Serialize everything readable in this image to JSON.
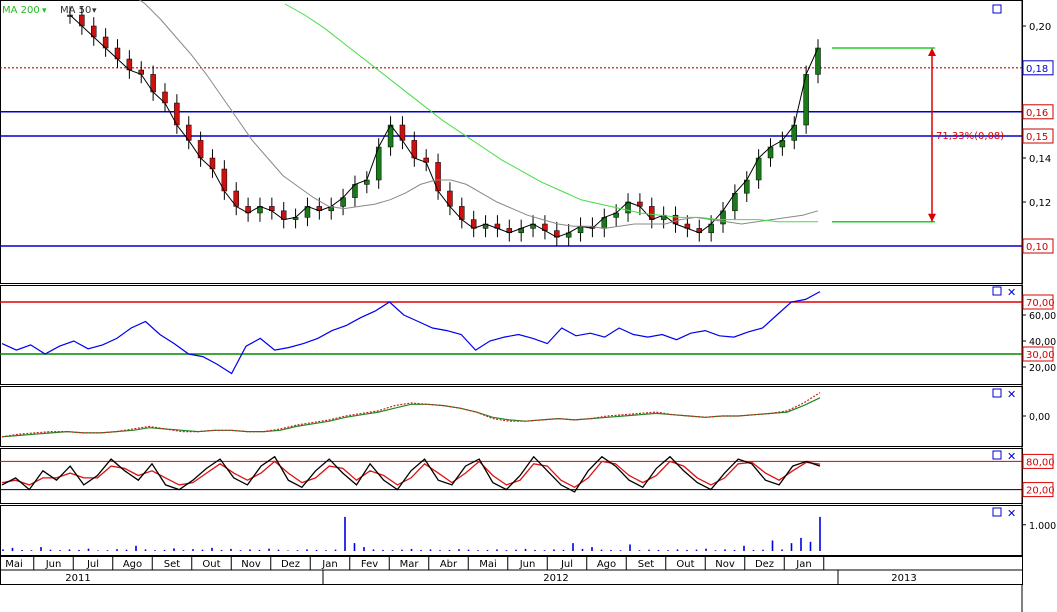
{
  "legend": {
    "ma_long_label": "MA 200",
    "ma_short_label": "MA 50"
  },
  "colors": {
    "price_up": "#1a7a1a",
    "price_down": "#cc1111",
    "price_line": "#000000",
    "ma_short": "#888888",
    "ma_long": "#44dd44",
    "support": "#0000cc",
    "resistance_dotted": "#cc0000",
    "rsi": "#0000ee",
    "overbought": "#dd0000",
    "oversold": "#008800",
    "macd": "#cc2222",
    "macd_signal": "#228822",
    "stoch_k": "#000000",
    "stoch_d": "#dd1111",
    "volume": "#0000dd"
  },
  "chart_data": [
    {
      "panel": "price",
      "type": "line",
      "ylim": [
        0.085,
        0.21
      ],
      "yticks": [
        "0,20",
        "0,18",
        "0,16",
        "0,14",
        "0,12",
        "0,10"
      ],
      "ytick_values": [
        0.2,
        0.18,
        0.16,
        0.14,
        0.12,
        0.1
      ],
      "horizontal_levels": [
        {
          "value": 0.161,
          "label": "0,16",
          "style": "solid",
          "color": "support"
        },
        {
          "value": 0.15,
          "label": "0,15",
          "style": "solid",
          "color": "support"
        },
        {
          "value": 0.1,
          "label": "0,10",
          "style": "solid",
          "color": "support"
        },
        {
          "value": 0.181,
          "label": "0,18",
          "style": "dotted",
          "color": "resistance_dotted"
        }
      ],
      "measure_annotation": {
        "text": "71,33%(0,08)",
        "from_value": 0.111,
        "to_value": 0.19
      },
      "price_series": [
        0.205,
        0.2,
        0.195,
        0.19,
        0.185,
        0.18,
        0.178,
        0.17,
        0.165,
        0.155,
        0.148,
        0.14,
        0.135,
        0.125,
        0.118,
        0.115,
        0.118,
        0.116,
        0.112,
        0.113,
        0.118,
        0.116,
        0.118,
        0.122,
        0.128,
        0.13,
        0.145,
        0.155,
        0.148,
        0.14,
        0.138,
        0.125,
        0.118,
        0.112,
        0.108,
        0.11,
        0.108,
        0.106,
        0.108,
        0.11,
        0.107,
        0.104,
        0.106,
        0.109,
        0.108,
        0.113,
        0.115,
        0.12,
        0.118,
        0.112,
        0.114,
        0.11,
        0.108,
        0.106,
        0.11,
        0.116,
        0.124,
        0.13,
        0.14,
        0.145,
        0.148,
        0.155,
        0.178,
        0.19
      ],
      "ma_short_series": [
        0.215,
        0.21,
        0.203,
        0.195,
        0.187,
        0.178,
        0.168,
        0.158,
        0.148,
        0.14,
        0.132,
        0.127,
        0.122,
        0.118,
        0.117,
        0.118,
        0.119,
        0.121,
        0.124,
        0.128,
        0.13,
        0.13,
        0.128,
        0.124,
        0.12,
        0.117,
        0.114,
        0.112,
        0.11,
        0.109,
        0.109,
        0.108,
        0.109,
        0.11,
        0.11,
        0.11,
        0.112,
        0.113,
        0.112,
        0.111,
        0.11,
        0.111,
        0.112,
        0.113,
        0.114,
        0.116
      ],
      "ma_long_series": [
        0.21,
        0.205,
        0.199,
        0.192,
        0.185,
        0.178,
        0.171,
        0.164,
        0.157,
        0.151,
        0.145,
        0.139,
        0.134,
        0.129,
        0.125,
        0.121,
        0.119,
        0.117,
        0.115,
        0.114,
        0.113,
        0.113,
        0.112,
        0.112,
        0.112,
        0.111,
        0.111,
        0.111
      ]
    },
    {
      "panel": "rsi",
      "type": "line",
      "ylim": [
        10,
        80
      ],
      "yticks": [
        "60,00",
        "40,00",
        "20,00"
      ],
      "ytick_values": [
        60,
        40,
        20
      ],
      "levels": [
        {
          "value": 70,
          "label": "70,00",
          "color": "overbought"
        },
        {
          "value": 30,
          "label": "30,00",
          "color": "oversold"
        }
      ],
      "values": [
        38,
        33,
        37,
        30,
        36,
        40,
        34,
        37,
        42,
        50,
        55,
        45,
        38,
        30,
        28,
        22,
        15,
        36,
        42,
        33,
        35,
        38,
        42,
        48,
        52,
        58,
        63,
        70,
        60,
        55,
        50,
        48,
        45,
        33,
        40,
        43,
        45,
        42,
        38,
        50,
        44,
        46,
        43,
        50,
        45,
        43,
        45,
        41,
        46,
        48,
        44,
        43,
        47,
        50,
        60,
        70,
        72,
        78
      ]
    },
    {
      "panel": "macd",
      "type": "line",
      "ylim": [
        -0.02,
        0.02
      ],
      "yticks": [
        "0,00"
      ],
      "ytick_values": [
        0
      ],
      "macd_values": [
        -0.016,
        -0.014,
        -0.013,
        -0.012,
        -0.012,
        -0.013,
        -0.013,
        -0.012,
        -0.01,
        -0.008,
        -0.01,
        -0.012,
        -0.012,
        -0.011,
        -0.011,
        -0.012,
        -0.012,
        -0.01,
        -0.007,
        -0.005,
        -0.003,
        0.0,
        0.002,
        0.004,
        0.008,
        0.01,
        0.009,
        0.008,
        0.006,
        0.003,
        -0.002,
        -0.004,
        -0.004,
        -0.003,
        -0.002,
        -0.003,
        -0.002,
        0.0,
        0.001,
        0.002,
        0.003,
        0.001,
        0.0,
        -0.001,
        0.0,
        0.0,
        0.001,
        0.002,
        0.004,
        0.01,
        0.018
      ],
      "signal_values": [
        -0.016,
        -0.015,
        -0.014,
        -0.013,
        -0.012,
        -0.013,
        -0.013,
        -0.012,
        -0.011,
        -0.009,
        -0.01,
        -0.011,
        -0.012,
        -0.011,
        -0.011,
        -0.012,
        -0.012,
        -0.011,
        -0.008,
        -0.006,
        -0.004,
        -0.001,
        0.001,
        0.003,
        0.006,
        0.009,
        0.009,
        0.008,
        0.006,
        0.003,
        -0.001,
        -0.003,
        -0.004,
        -0.003,
        -0.002,
        -0.003,
        -0.002,
        -0.001,
        0.0,
        0.001,
        0.002,
        0.001,
        0.0,
        -0.001,
        0.0,
        0.0,
        0.001,
        0.002,
        0.003,
        0.008,
        0.014
      ]
    },
    {
      "panel": "stochastic",
      "type": "line",
      "ylim": [
        0,
        100
      ],
      "yticks": [],
      "ytick_values": [],
      "levels": [
        {
          "value": 80,
          "label": "80,00",
          "color": "overbought"
        },
        {
          "value": 20,
          "label": "20,00",
          "color": "overbought"
        }
      ],
      "k_values": [
        30,
        45,
        20,
        60,
        40,
        70,
        30,
        50,
        85,
        60,
        40,
        75,
        30,
        20,
        40,
        65,
        85,
        45,
        30,
        70,
        90,
        40,
        25,
        60,
        85,
        55,
        30,
        75,
        40,
        20,
        60,
        85,
        40,
        30,
        70,
        85,
        35,
        20,
        50,
        90,
        60,
        30,
        15,
        60,
        90,
        70,
        40,
        25,
        65,
        90,
        60,
        35,
        20,
        55,
        85,
        75,
        40,
        30,
        70,
        80,
        70
      ],
      "d_values": [
        35,
        40,
        30,
        45,
        45,
        55,
        45,
        45,
        70,
        65,
        50,
        60,
        45,
        30,
        35,
        55,
        75,
        55,
        40,
        55,
        80,
        55,
        35,
        45,
        70,
        65,
        40,
        60,
        50,
        30,
        45,
        75,
        55,
        35,
        55,
        80,
        50,
        30,
        40,
        75,
        70,
        40,
        25,
        45,
        80,
        75,
        50,
        35,
        50,
        80,
        70,
        45,
        30,
        45,
        75,
        78,
        55,
        40,
        60,
        78,
        74
      ]
    },
    {
      "panel": "volume",
      "type": "bar",
      "ylim": [
        0,
        1600000
      ],
      "yticks": [
        "1.000,0"
      ],
      "ytick_values": [
        1000000
      ],
      "values": [
        60000,
        120000,
        40000,
        30000,
        150000,
        50000,
        30000,
        60000,
        40000,
        90000,
        20000,
        30000,
        70000,
        50000,
        200000,
        60000,
        30000,
        40000,
        100000,
        30000,
        70000,
        50000,
        120000,
        40000,
        80000,
        30000,
        60000,
        40000,
        90000,
        50000,
        20000,
        30000,
        60000,
        40000,
        30000,
        50000,
        1300000,
        300000,
        150000,
        60000,
        40000,
        30000,
        50000,
        80000,
        40000,
        60000,
        30000,
        40000,
        70000,
        50000,
        30000,
        40000,
        60000,
        30000,
        50000,
        80000,
        40000,
        30000,
        60000,
        40000,
        300000,
        80000,
        150000,
        50000,
        40000,
        30000,
        250000,
        30000,
        50000,
        40000,
        30000,
        60000,
        40000,
        50000,
        90000,
        30000,
        60000,
        40000,
        200000,
        40000,
        50000,
        400000,
        60000,
        300000,
        500000,
        350000,
        1300000
      ]
    }
  ],
  "x_axis": {
    "months": [
      "Mai",
      "Jun",
      "Jul",
      "Ago",
      "Set",
      "Out",
      "Nov",
      "Dez",
      "Jan",
      "Fev",
      "Mar",
      "Abr",
      "Mai",
      "Jun",
      "Jul",
      "Ago",
      "Set",
      "Out",
      "Nov",
      "Dez",
      "Jan"
    ],
    "years": [
      "2011",
      "2012",
      "2013"
    ]
  }
}
